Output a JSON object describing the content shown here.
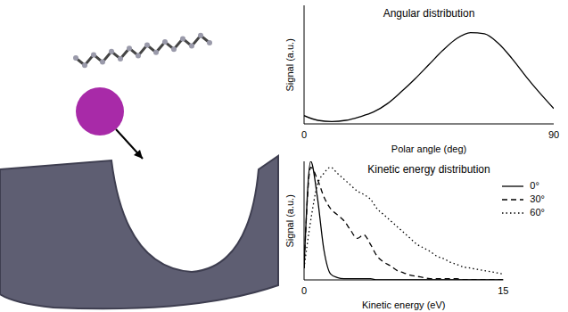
{
  "chart_data": [
    {
      "type": "line",
      "title": "Angular distribution",
      "x_label": "Polar angle (deg)",
      "y_label": "Signal (a.u.)",
      "x": [
        0,
        5,
        10,
        15,
        20,
        25,
        30,
        35,
        40,
        45,
        50,
        55,
        60,
        65,
        70,
        75,
        80,
        85,
        90
      ],
      "values": [
        0.07,
        0.03,
        0.02,
        0.03,
        0.06,
        0.1,
        0.17,
        0.27,
        0.38,
        0.5,
        0.62,
        0.72,
        0.77,
        0.76,
        0.68,
        0.55,
        0.4,
        0.26,
        0.13
      ],
      "color": "#000000",
      "line_style": "solid",
      "xlim": [
        0,
        90
      ],
      "xticks": [
        0,
        90
      ],
      "ylim": [
        0,
        1
      ],
      "yticks": [
        0,
        0.25,
        0.5,
        0.75,
        1
      ],
      "grid": true,
      "tick_labels": "x"
    },
    {
      "type": "line",
      "title": "Kinetic energy distribution",
      "x_label": "Kinetic energy (eV)",
      "y_label": "Signal (a.u.)",
      "x": [
        0,
        0.5,
        1,
        1.5,
        2,
        2.5,
        3,
        3.5,
        4,
        4.5,
        5,
        5.5,
        6,
        6.5,
        7,
        7.5,
        8,
        8.5,
        9,
        9.5,
        10,
        10.5,
        11,
        11.5,
        12,
        12.5,
        13,
        13.5,
        14,
        14.5,
        15
      ],
      "series": [
        {
          "name": "0°",
          "color": "#000000",
          "line_style": "solid",
          "values": [
            0.1,
            1.0,
            0.7,
            0.25,
            0.05,
            0.02,
            0.01,
            0.01,
            0.01,
            0.01,
            0.01,
            0,
            0,
            0,
            0,
            0,
            0,
            0,
            0,
            0,
            0,
            0,
            0,
            0,
            0,
            0,
            0,
            0,
            0,
            0,
            0
          ]
        },
        {
          "name": "30°",
          "color": "#000000",
          "line_style": "dashed",
          "values": [
            0.1,
            0.95,
            0.85,
            0.7,
            0.6,
            0.55,
            0.5,
            0.42,
            0.35,
            0.38,
            0.3,
            0.2,
            0.15,
            0.12,
            0.08,
            0.06,
            0.04,
            0.03,
            0.02,
            0.01,
            0.01,
            0.01,
            0.01,
            0.01,
            0,
            0,
            0,
            0,
            0,
            0,
            0
          ]
        },
        {
          "name": "60°",
          "color": "#000000",
          "line_style": "dotted",
          "values": [
            0.1,
            0.5,
            0.8,
            0.9,
            0.95,
            0.9,
            0.85,
            0.8,
            0.75,
            0.72,
            0.68,
            0.6,
            0.55,
            0.5,
            0.45,
            0.4,
            0.35,
            0.3,
            0.27,
            0.24,
            0.2,
            0.18,
            0.15,
            0.13,
            0.11,
            0.1,
            0.09,
            0.08,
            0.07,
            0.06,
            0.05
          ]
        }
      ],
      "xlim": [
        0,
        15
      ],
      "xticks": [
        0,
        15
      ],
      "ylim": [
        0,
        1
      ],
      "yticks": [
        0,
        0.25,
        0.5,
        0.75,
        1
      ],
      "grid": true,
      "legend": "upper right",
      "tick_labels": "x"
    }
  ]
}
